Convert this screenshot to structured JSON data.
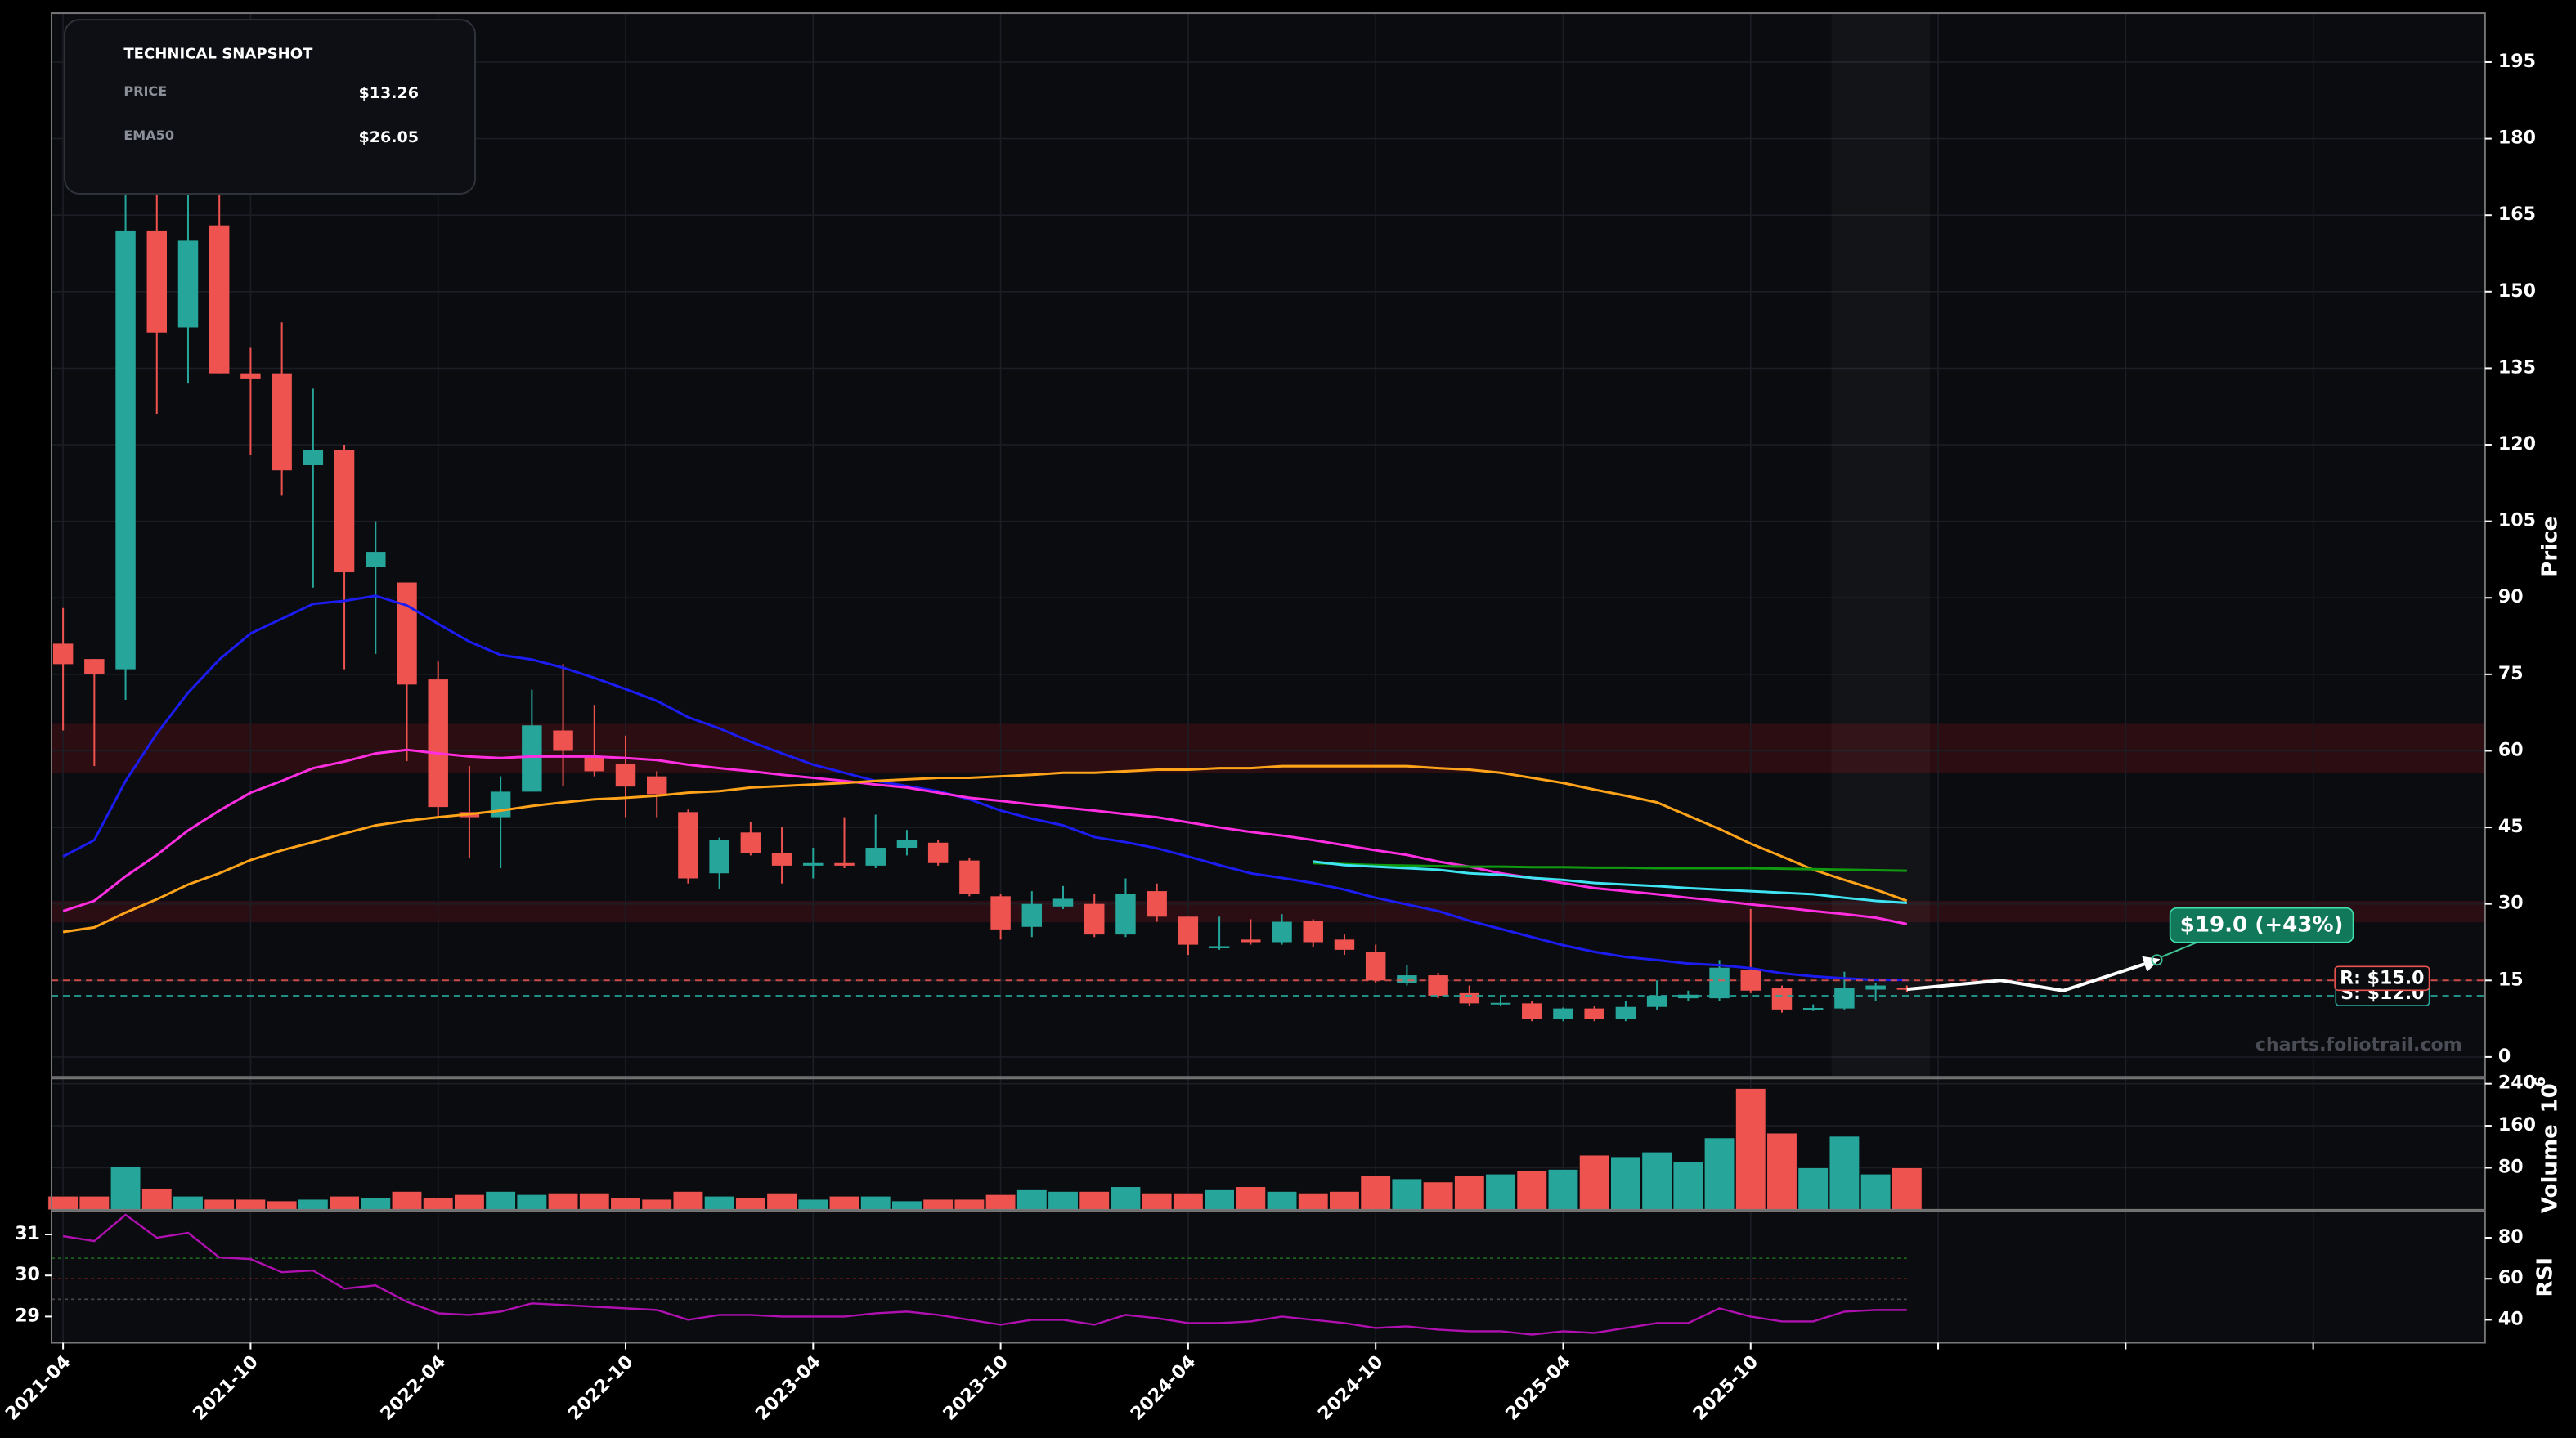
{
  "chart_data": {
    "type": "candlestick",
    "x": [
      "2021-04",
      "2021-05",
      "2021-06",
      "2021-07",
      "2021-08",
      "2021-09",
      "2021-10",
      "2021-11",
      "2021-12",
      "2022-01",
      "2022-02",
      "2022-03",
      "2022-04",
      "2022-05",
      "2022-06",
      "2022-07",
      "2022-08",
      "2022-09",
      "2022-10",
      "2022-11",
      "2022-12",
      "2023-01",
      "2023-02",
      "2023-03",
      "2023-04",
      "2023-05",
      "2023-06",
      "2023-07",
      "2023-08",
      "2023-09",
      "2023-10",
      "2023-11",
      "2023-12",
      "2024-01",
      "2024-02",
      "2024-03",
      "2024-04",
      "2024-05",
      "2024-06",
      "2024-07",
      "2024-08",
      "2024-09",
      "2024-10",
      "2024-11",
      "2024-12",
      "2025-01",
      "2025-02",
      "2025-03",
      "2025-04",
      "2025-05",
      "2025-06",
      "2025-07",
      "2025-08",
      "2025-09",
      "2025-10",
      "2025-11",
      "2025-12",
      "2026-01",
      "2026-02",
      "2026-03"
    ],
    "xlim": [
      "2021-04",
      "2027-09"
    ],
    "xticks": [
      "2021-04",
      "2021-10",
      "2022-04",
      "2022-10",
      "2023-04",
      "2023-10",
      "2024-04",
      "2024-10",
      "2025-04",
      "2025-10",
      {
        "value": "2026-04",
        "label": null
      },
      {
        "value": "2026-10",
        "label": null
      },
      {
        "value": "2027-04",
        "label": null
      }
    ],
    "ylabel": "Price",
    "ylim": [
      -3.9,
      204.6
    ],
    "yticks": [
      0,
      15,
      30,
      45,
      60,
      75,
      90,
      105,
      120,
      135,
      150,
      165,
      180,
      195
    ],
    "grid": true,
    "up_color": "#26a69a",
    "down_color": "#ef5350",
    "open": [
      81,
      78,
      76,
      162,
      143,
      163,
      134,
      134,
      116,
      119,
      96,
      93,
      74,
      48,
      47,
      52,
      64,
      59,
      57.5,
      55,
      48,
      36,
      44,
      40,
      37.5,
      38,
      37.5,
      41,
      42,
      38.5,
      31.5,
      25.5,
      29.5,
      30,
      24,
      32.5,
      27.5,
      21.3,
      23,
      22.5,
      26.7,
      23,
      20.5,
      14.5,
      16,
      12.5,
      10.3,
      10.5,
      7.5,
      9.5,
      7.5,
      9.8,
      11.5,
      11.5,
      17,
      13.5,
      9.2,
      9.5,
      13.2,
      13.5
    ],
    "high": [
      88,
      78,
      172,
      170,
      178,
      181,
      139,
      144,
      131,
      120,
      105,
      93,
      77.5,
      57,
      55,
      72,
      77,
      69,
      63,
      56,
      48.5,
      43,
      46,
      45,
      41,
      47,
      47.5,
      44.5,
      42.5,
      39,
      32,
      32.5,
      33.5,
      32,
      35,
      34,
      27.5,
      27.5,
      27,
      28,
      27,
      24,
      22,
      18,
      16.5,
      14,
      12,
      11,
      9.7,
      10,
      11,
      15,
      13,
      19,
      29,
      14,
      10.3,
      16.7,
      14.5,
      14
    ],
    "low": [
      64,
      57,
      70,
      126,
      132,
      134,
      118,
      110,
      92,
      76,
      79,
      58,
      47,
      39,
      37,
      52,
      53,
      55,
      47,
      47,
      34,
      33,
      39.5,
      34,
      35,
      37,
      37,
      39.5,
      37.5,
      31.5,
      23,
      23.5,
      29,
      23.5,
      23.5,
      26.5,
      20,
      21,
      22,
      22,
      21.5,
      20,
      14.5,
      14,
      11.5,
      10,
      10,
      7,
      7,
      7,
      7,
      9.3,
      11,
      11,
      12.5,
      8.7,
      9,
      9.3,
      11,
      12.8
    ],
    "close": [
      77,
      75,
      162,
      142,
      160,
      134,
      133,
      115,
      119,
      95,
      99,
      73,
      49,
      47,
      52,
      65,
      60,
      56,
      53,
      51.5,
      35,
      42.5,
      40,
      37.5,
      38,
      37.5,
      41,
      42.5,
      38,
      32,
      25,
      30,
      31,
      24,
      32,
      27.5,
      22,
      21.7,
      22.5,
      26.5,
      22.5,
      21,
      15,
      16,
      12,
      10.5,
      10.6,
      7.5,
      9.5,
      7.5,
      9.8,
      12,
      12.2,
      17.5,
      13,
      9.3,
      9.6,
      13.5,
      14,
      13.26
    ],
    "overlays": [
      {
        "color": "#1c1cf0",
        "values": [
          39.3,
          42.5,
          54.1,
          63.4,
          71.4,
          77.9,
          83,
          85.9,
          88.8,
          89.4,
          90.4,
          88.5,
          84.9,
          81.4,
          78.8,
          77.9,
          76.3,
          74.3,
          72.1,
          69.8,
          66.6,
          64.4,
          61.8,
          59.5,
          57.3,
          55.7,
          54.1,
          53.1,
          52.1,
          50.5,
          48.3,
          46.7,
          45.4,
          43.1,
          42.1,
          40.9,
          39.3,
          37.6,
          36,
          35.1,
          34.1,
          32.8,
          31.2,
          29.9,
          28.6,
          26.7,
          25.1,
          23.5,
          21.9,
          20.6,
          19.6,
          19,
          18.3,
          18,
          17.4,
          16.4,
          15.8,
          15.4,
          15.1,
          15.1
        ]
      },
      {
        "color": "#ff2ee0",
        "values": [
          28.6,
          30.6,
          35.4,
          39.6,
          44.4,
          48.3,
          51.8,
          54.1,
          56.6,
          57.9,
          59.5,
          60.2,
          59.5,
          58.9,
          58.6,
          58.9,
          58.9,
          58.9,
          58.6,
          58.2,
          57.3,
          56.6,
          56,
          55.3,
          54.7,
          54.1,
          53.4,
          52.8,
          51.8,
          50.8,
          50.2,
          49.5,
          48.9,
          48.3,
          47.6,
          47,
          46,
          45,
          44.1,
          43.4,
          42.5,
          41.5,
          40.5,
          39.6,
          38.3,
          37.3,
          36,
          35.1,
          34.1,
          33.1,
          32.5,
          31.9,
          31.2,
          30.6,
          29.9,
          29.3,
          28.6,
          28,
          27.3,
          26.05
        ]
      },
      {
        "color": "#ffa31a",
        "values": [
          24.5,
          25.4,
          28.3,
          30.9,
          33.8,
          36,
          38.6,
          40.5,
          42.1,
          43.8,
          45.4,
          46.3,
          47,
          47.6,
          48.3,
          49.2,
          49.9,
          50.5,
          50.8,
          51.2,
          51.8,
          52.1,
          52.8,
          53.1,
          53.4,
          53.7,
          54.1,
          54.4,
          54.7,
          54.7,
          55,
          55.3,
          55.7,
          55.7,
          56,
          56.3,
          56.3,
          56.6,
          56.6,
          57,
          57,
          57,
          57,
          57,
          56.6,
          56.3,
          55.7,
          54.7,
          53.7,
          52.4,
          51.2,
          49.9,
          47.3,
          44.7,
          41.8,
          39.3,
          36.7,
          34.7,
          32.8,
          30.6
        ]
      },
      {
        "color": "#109a10",
        "values": [
          null,
          null,
          null,
          null,
          null,
          null,
          null,
          null,
          null,
          null,
          null,
          null,
          null,
          null,
          null,
          null,
          null,
          null,
          null,
          null,
          null,
          null,
          null,
          null,
          null,
          null,
          null,
          null,
          null,
          null,
          null,
          null,
          null,
          null,
          null,
          null,
          null,
          null,
          null,
          null,
          38,
          37.8,
          37.6,
          37.5,
          37.4,
          37.3,
          37.3,
          37.2,
          37.2,
          37.1,
          37.1,
          37,
          37,
          37,
          37,
          36.9,
          36.8,
          36.7,
          36.6,
          36.5
        ]
      },
      {
        "color": "#3fe3f2",
        "values": [
          null,
          null,
          null,
          null,
          null,
          null,
          null,
          null,
          null,
          null,
          null,
          null,
          null,
          null,
          null,
          null,
          null,
          null,
          null,
          null,
          null,
          null,
          null,
          null,
          null,
          null,
          null,
          null,
          null,
          null,
          null,
          null,
          null,
          null,
          null,
          null,
          null,
          null,
          null,
          null,
          38.3,
          37.6,
          37.3,
          37,
          36.7,
          36,
          35.7,
          35.1,
          34.7,
          34.1,
          33.8,
          33.5,
          33.1,
          32.8,
          32.5,
          32.2,
          31.9,
          31.2,
          30.6,
          30.2
        ]
      }
    ],
    "zones": [
      {
        "range": [
          55.7,
          65.3
        ],
        "color": "#2c0d11"
      },
      {
        "range": [
          26.4,
          30.6
        ],
        "color": "#2a0e13"
      }
    ],
    "levels": [
      {
        "value": 12,
        "label": "S: $12.0",
        "color": "#26a69a"
      },
      {
        "value": 15,
        "label": "R: $15.0",
        "color": "#ef5350"
      }
    ],
    "forecast": {
      "x": [
        "2026-03",
        "2026-06",
        "2026-08",
        "2026-11"
      ],
      "values": [
        13.26,
        15,
        13,
        19
      ],
      "color": "#ffffff",
      "annotation": "$19.0 (+43%)",
      "annotation_color": "#12785a"
    },
    "volume": {
      "ylabel": "Volume",
      "multiplier_base": "10",
      "multiplier_exponent": "6",
      "ylim": [
        0,
        250
      ],
      "yticks": [
        80,
        160,
        240
      ],
      "values": [
        26,
        26,
        83,
        41,
        26,
        20,
        20,
        17,
        20,
        26,
        23,
        35,
        23,
        29,
        35,
        29,
        32,
        32,
        23,
        20,
        35,
        26,
        23,
        32,
        20,
        26,
        26,
        17,
        20,
        20,
        29,
        38,
        35,
        35,
        44,
        32,
        32,
        38,
        44,
        35,
        32,
        35,
        65,
        59,
        53,
        65,
        68,
        74,
        77,
        104,
        101,
        110,
        92,
        137,
        231,
        146,
        80,
        140,
        68,
        80
      ]
    },
    "rsi": {
      "ylabel": "RSI",
      "ylim": [
        28.8,
        92.8
      ],
      "yticks": [
        40,
        60,
        80
      ],
      "left_ylim": [
        28.36,
        31.56
      ],
      "left_yticks": [
        29,
        30,
        31
      ],
      "color": "#b010b0",
      "values": [
        80.8,
        78.4,
        91.2,
        80,
        82.4,
        70.4,
        69.6,
        63.2,
        64,
        55.2,
        56.8,
        48.8,
        43.2,
        42.4,
        44,
        48,
        47.2,
        46.4,
        45.6,
        44.8,
        40,
        42.4,
        42.4,
        41.6,
        41.6,
        41.6,
        43.2,
        44,
        42.4,
        40,
        37.6,
        40,
        40,
        37.6,
        42.4,
        40.8,
        38.4,
        38.4,
        39.2,
        41.6,
        40,
        38.4,
        36,
        36.8,
        35.2,
        34.4,
        34.4,
        32.8,
        34.4,
        33.6,
        36,
        38.4,
        38.4,
        45.6,
        41.6,
        39.2,
        39.2,
        44,
        44.8,
        44.8
      ],
      "levels": [
        {
          "value": 70,
          "color": "#1f6e1f"
        },
        {
          "value": 60,
          "color": "#7a1f1f"
        },
        {
          "value": 50,
          "color": "#4a4a4a"
        }
      ]
    },
    "snapshot": {
      "title": "TECHNICAL SNAPSHOT",
      "rows": [
        {
          "label": "PRICE",
          "value": "$13.26",
          "color": "#ffffff"
        },
        {
          "label": "EMA50",
          "value": "$26.05",
          "color": "#ff3fd8"
        }
      ]
    },
    "watermark": "charts.foliotrail.com"
  }
}
